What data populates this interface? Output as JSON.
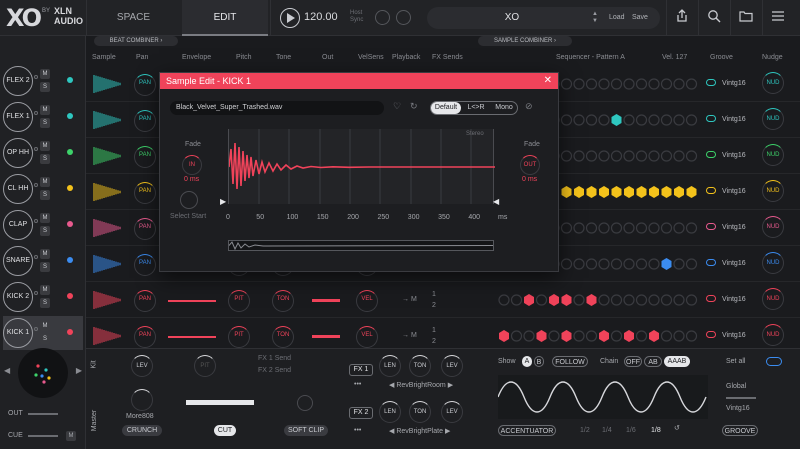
{
  "header": {
    "logo_xo": "XO",
    "logo_by": "BY",
    "logo_xln": "XLN",
    "logo_audio": "AUDIO",
    "tabs": [
      {
        "label": "SPACE"
      },
      {
        "label": "EDIT"
      }
    ],
    "tempo": "120.00",
    "host_sync_line1": "Host",
    "host_sync_line2": "Sync",
    "preset_name": "XO",
    "load_label": "Load",
    "save_label": "Save"
  },
  "combiners": {
    "beat": "BEAT COMBINER",
    "sample": "SAMPLE COMBINER"
  },
  "columns": [
    "Sample",
    "Pan",
    "Envelope",
    "Pitch",
    "Tone",
    "Out",
    "VelSens",
    "Playback",
    "FX Sends",
    "Sequencer - Pattern A",
    "Vel. 127",
    "Groove",
    "Nudge"
  ],
  "slots": [
    {
      "label": "FLEX 2",
      "color": "#2ec7c0"
    },
    {
      "label": "FLEX 1",
      "color": "#2ec7c0"
    },
    {
      "label": "OP HH",
      "color": "#3dd36a"
    },
    {
      "label": "CL HH",
      "color": "#f3c21b"
    },
    {
      "label": "CLAP",
      "color": "#e85a8e"
    },
    {
      "label": "SNARE",
      "color": "#3b8cf0"
    },
    {
      "label": "KICK 2",
      "color": "#f0435a"
    },
    {
      "label": "KICK 1",
      "color": "#f0435a"
    }
  ],
  "slot_m": "M",
  "slot_s": "S",
  "track_labels": {
    "pan": "PAN",
    "pit": "PIT",
    "ton": "TON",
    "vel": "VEL",
    "nud": "NUD",
    "m": "M",
    "one": "1",
    "two": "2"
  },
  "groove_value": "Vintg16",
  "modal": {
    "title": "Sample Edit - KICK 1",
    "filename": "Black_Velvet_Super_Trashed.wav",
    "modes": {
      "default": "Default",
      "lr": "L<>R",
      "mono": "Mono"
    },
    "stereo": "Stereo",
    "fade_in_label": "Fade",
    "fade_in_knob": "IN",
    "fade_in_value": "0 ms",
    "fade_out_label": "Fade",
    "fade_out_knob": "OUT",
    "fade_out_value": "0 ms",
    "select_start": "Select Start",
    "axis": [
      "0",
      "50",
      "100",
      "150",
      "200",
      "250",
      "300",
      "350",
      "400"
    ],
    "axis_unit": "ms"
  },
  "left": {
    "out_label": "OUT",
    "cue_label": "CUE",
    "cue_m": "M"
  },
  "bottom": {
    "kit_label": "Kit",
    "master_label": "Master",
    "lev": "LEV",
    "pit": "PIT",
    "fx1_send": "FX 1 Send",
    "fx2_send": "FX 2 Send",
    "master_preset": "More808",
    "crunch": "CRUNCH",
    "cut": "CUT",
    "soft_clip": "SOFT CLIP",
    "fx1": "FX 1",
    "fx2": "FX 2",
    "len": "LEN",
    "ton": "TON",
    "fx1_preset": "RevBrightRoom",
    "fx2_preset": "RevBrightPlate",
    "dots": "•••",
    "show_label": "Show",
    "show_a": "A",
    "show_b": "B",
    "follow": "FOLLOW",
    "chain_label": "Chain",
    "chain_off": "OFF",
    "chain_ab": "AB",
    "chain_aaab": "AAAB",
    "accentuator": "ACCENTUATOR",
    "rates": [
      "1/2",
      "1/4",
      "1/6",
      "1/8"
    ],
    "set_all": "Set all",
    "global_label": "Global",
    "groove_btn": "GROOVE",
    "groove_value": "Vintg16"
  },
  "colors": {
    "accent": "#f0435a",
    "bg": "#1a1b1e",
    "panel": "#222326"
  }
}
